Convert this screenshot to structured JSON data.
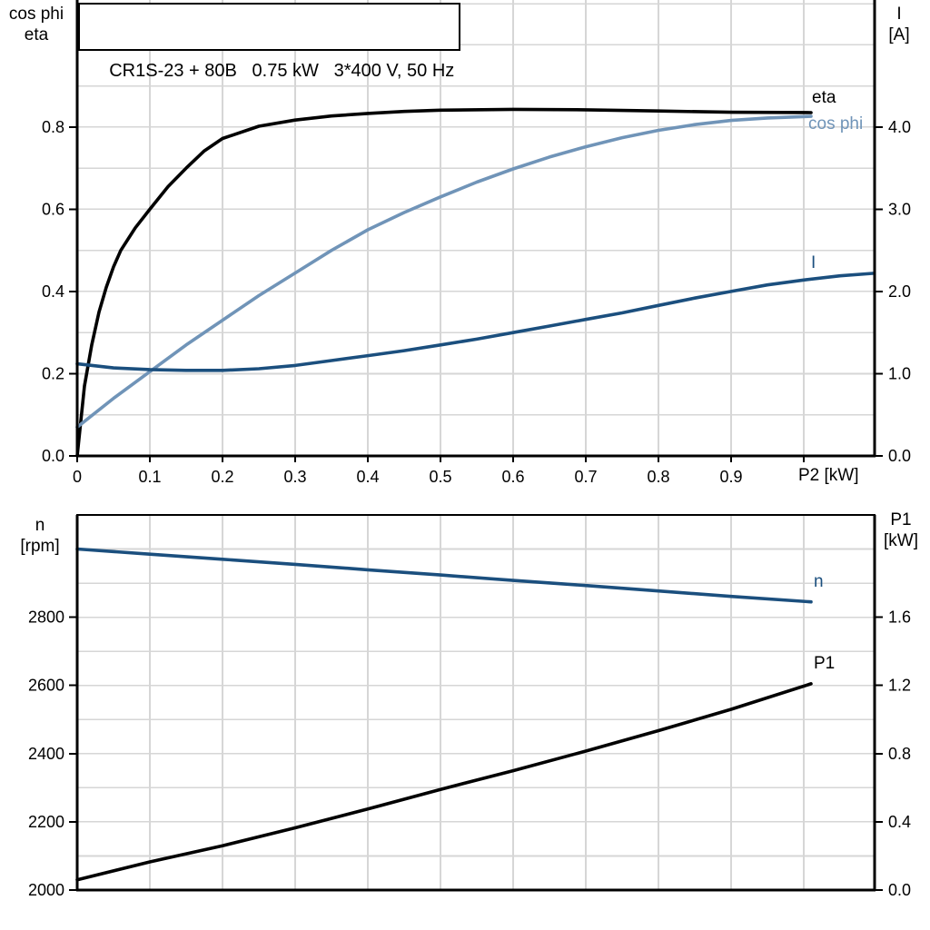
{
  "colors": {
    "curve_black": "#000000",
    "curve_light_blue": "#7094b8",
    "curve_dark_blue": "#1b4f7e",
    "grid": "#d6d6d6",
    "axis": "#000000",
    "background": "#ffffff",
    "tick_text": "#000000"
  },
  "chart_data": [
    {
      "type": "line",
      "title": "CR1S-23 + 80B   0.75 kW   3*400 V, 50 Hz",
      "axis_title_left": [
        "cos phi",
        "eta"
      ],
      "axis_title_right": [
        "I",
        "[A]"
      ],
      "x_axis_label": "P2 [kW]",
      "xlim": [
        0,
        1.0975
      ],
      "ylim_left": [
        0,
        1.109
      ],
      "ylim_right": [
        0,
        5.545
      ],
      "x_grid_step": 0.1,
      "y_grid_step": 0.1,
      "grid": true,
      "x_ticks": {
        "values": [
          0,
          0.1,
          0.2,
          0.3,
          0.4,
          0.5,
          0.6,
          0.7,
          0.8,
          0.9,
          1.0
        ],
        "labels": [
          "0",
          "0.1",
          "0.2",
          "0.3",
          "0.4",
          "0.5",
          "0.6",
          "0.7",
          "0.8",
          "0.9",
          ""
        ]
      },
      "y_ticks_left": {
        "values": [
          0,
          0.2,
          0.4,
          0.6,
          0.8
        ],
        "labels": [
          "0.0",
          "0.2",
          "0.4",
          "0.6",
          "0.8"
        ]
      },
      "y_ticks_right": {
        "values": [
          0,
          1,
          2,
          3,
          4
        ],
        "labels": [
          "0.0",
          "1.0",
          "2.0",
          "3.0",
          "4.0"
        ]
      },
      "series": [
        {
          "name": "eta",
          "axis": "left",
          "color_key": "curve_black",
          "points": [
            [
              0,
              0
            ],
            [
              0.01,
              0.17
            ],
            [
              0.02,
              0.27
            ],
            [
              0.03,
              0.35
            ],
            [
              0.04,
              0.41
            ],
            [
              0.05,
              0.46
            ],
            [
              0.06,
              0.5
            ],
            [
              0.08,
              0.555
            ],
            [
              0.1,
              0.6
            ],
            [
              0.125,
              0.655
            ],
            [
              0.15,
              0.7
            ],
            [
              0.175,
              0.742
            ],
            [
              0.2,
              0.772
            ],
            [
              0.25,
              0.802
            ],
            [
              0.3,
              0.817
            ],
            [
              0.35,
              0.827
            ],
            [
              0.4,
              0.833
            ],
            [
              0.45,
              0.838
            ],
            [
              0.5,
              0.841
            ],
            [
              0.6,
              0.843
            ],
            [
              0.7,
              0.842
            ],
            [
              0.8,
              0.839
            ],
            [
              0.9,
              0.836
            ],
            [
              1.01,
              0.835
            ]
          ]
        },
        {
          "name": "cos phi",
          "axis": "left",
          "color_key": "curve_light_blue",
          "points": [
            [
              0,
              0.07
            ],
            [
              0.05,
              0.14
            ],
            [
              0.1,
              0.205
            ],
            [
              0.15,
              0.27
            ],
            [
              0.2,
              0.33
            ],
            [
              0.25,
              0.39
            ],
            [
              0.3,
              0.445
            ],
            [
              0.35,
              0.5
            ],
            [
              0.4,
              0.55
            ],
            [
              0.45,
              0.592
            ],
            [
              0.5,
              0.63
            ],
            [
              0.55,
              0.666
            ],
            [
              0.6,
              0.698
            ],
            [
              0.65,
              0.727
            ],
            [
              0.7,
              0.752
            ],
            [
              0.75,
              0.774
            ],
            [
              0.8,
              0.792
            ],
            [
              0.85,
              0.806
            ],
            [
              0.9,
              0.816
            ],
            [
              0.95,
              0.822
            ],
            [
              1.01,
              0.826
            ]
          ]
        },
        {
          "name": "I",
          "axis": "right",
          "color_key": "curve_dark_blue",
          "points": [
            [
              0,
              1.12
            ],
            [
              0.05,
              1.07
            ],
            [
              0.1,
              1.05
            ],
            [
              0.15,
              1.04
            ],
            [
              0.2,
              1.04
            ],
            [
              0.25,
              1.06
            ],
            [
              0.3,
              1.1
            ],
            [
              0.35,
              1.16
            ],
            [
              0.4,
              1.22
            ],
            [
              0.45,
              1.28
            ],
            [
              0.5,
              1.35
            ],
            [
              0.55,
              1.42
            ],
            [
              0.6,
              1.5
            ],
            [
              0.65,
              1.58
            ],
            [
              0.7,
              1.66
            ],
            [
              0.75,
              1.74
            ],
            [
              0.8,
              1.83
            ],
            [
              0.85,
              1.92
            ],
            [
              0.9,
              2.0
            ],
            [
              0.95,
              2.08
            ],
            [
              1.0,
              2.14
            ],
            [
              1.05,
              2.19
            ],
            [
              1.095,
              2.22
            ]
          ]
        }
      ]
    },
    {
      "type": "line",
      "axis_title_left": [
        "n",
        "[rpm]"
      ],
      "axis_title_right": [
        "P1",
        "[kW]"
      ],
      "xlim": [
        0,
        1.0975
      ],
      "ylim_left": [
        2000,
        3100
      ],
      "ylim_right": [
        0,
        2.2
      ],
      "x_grid_step": 0.1,
      "y_grid_step": 100,
      "grid": true,
      "x_ticks": {
        "values": [],
        "labels": []
      },
      "y_ticks_left": {
        "values": [
          2000,
          2200,
          2400,
          2600,
          2800
        ],
        "labels": [
          "2000",
          "2200",
          "2400",
          "2600",
          "2800"
        ]
      },
      "y_ticks_right": {
        "values": [
          0,
          0.4,
          0.8,
          1.2,
          1.6
        ],
        "labels": [
          "0.0",
          "0.4",
          "0.8",
          "1.2",
          "1.6"
        ]
      },
      "series": [
        {
          "name": "n",
          "axis": "left",
          "color_key": "curve_dark_blue",
          "points": [
            [
              0,
              3000
            ],
            [
              0.1,
              2985
            ],
            [
              0.2,
              2970
            ],
            [
              0.3,
              2955
            ],
            [
              0.4,
              2939
            ],
            [
              0.5,
              2924
            ],
            [
              0.6,
              2908
            ],
            [
              0.7,
              2893
            ],
            [
              0.8,
              2877
            ],
            [
              0.9,
              2861
            ],
            [
              1.01,
              2845
            ]
          ]
        },
        {
          "name": "P1",
          "axis": "right",
          "color_key": "curve_black",
          "points": [
            [
              0,
              0.06
            ],
            [
              0.1,
              0.165
            ],
            [
              0.2,
              0.26
            ],
            [
              0.3,
              0.365
            ],
            [
              0.4,
              0.475
            ],
            [
              0.5,
              0.59
            ],
            [
              0.6,
              0.7
            ],
            [
              0.7,
              0.815
            ],
            [
              0.8,
              0.935
            ],
            [
              0.9,
              1.06
            ],
            [
              1.01,
              1.21
            ]
          ]
        }
      ]
    }
  ]
}
